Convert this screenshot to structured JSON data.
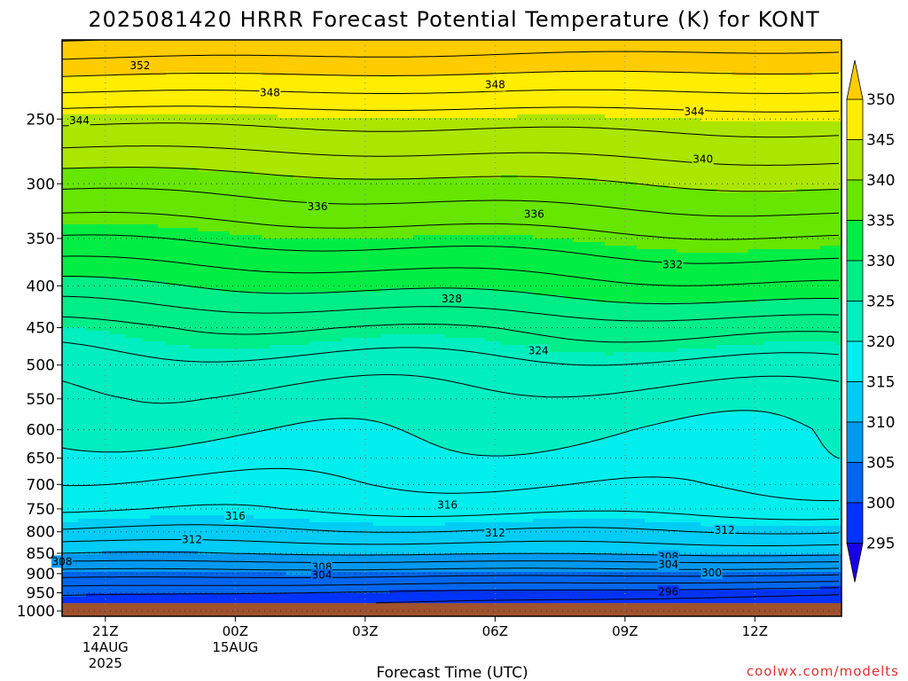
{
  "title": "2025081420 HRRR Forecast Potential Temperature (K) for KONT",
  "credit": "coolwx.com/modelts",
  "chart_data": {
    "type": "heatmap",
    "title": "2025081420 HRRR Forecast Potential Temperature (K) for KONT",
    "xlabel": "Forecast Time (UTC)",
    "ylabel": "",
    "x_ticks": [
      {
        "hour": 1,
        "lines": [
          "21Z",
          "14AUG",
          "2025"
        ]
      },
      {
        "hour": 4,
        "lines": [
          "00Z",
          "15AUG"
        ]
      },
      {
        "hour": 7,
        "lines": [
          "03Z"
        ]
      },
      {
        "hour": 10,
        "lines": [
          "06Z"
        ]
      },
      {
        "hour": 13,
        "lines": [
          "09Z"
        ]
      },
      {
        "hour": 16,
        "lines": [
          "12Z"
        ]
      }
    ],
    "x_range_hours": [
      0,
      18
    ],
    "y_ticks": [
      250,
      300,
      350,
      400,
      450,
      500,
      550,
      600,
      650,
      700,
      750,
      800,
      850,
      900,
      950,
      1000
    ],
    "y_range_hPa": [
      200,
      1015
    ],
    "y_scale": "log",
    "ground_pressure_hPa": 978,
    "colorbar": {
      "levels": [
        295,
        300,
        305,
        310,
        315,
        320,
        325,
        330,
        335,
        340,
        345,
        350
      ],
      "colors": [
        "#1a00e6",
        "#0033ff",
        "#0066ee",
        "#0099f0",
        "#00ccf5",
        "#00eeee",
        "#00eec0",
        "#00ee88",
        "#00ee44",
        "#66e600",
        "#aae600",
        "#ffee00",
        "#ffcc00"
      ]
    },
    "ground_color": "#a0522d",
    "contour_interval": 2,
    "potential_temperature_profile": {
      "pressure": [
        200,
        250,
        300,
        350,
        400,
        450,
        500,
        550,
        600,
        650,
        700,
        750,
        800,
        850,
        900,
        950,
        978
      ],
      "theta_hour0": [
        354,
        344.5,
        338.5,
        334,
        329.5,
        325.5,
        323,
        321.5,
        320.5,
        319,
        317.5,
        316,
        313.5,
        310,
        305,
        300.5,
        299
      ],
      "theta_hour18": [
        353,
        345,
        340.5,
        336,
        332,
        327,
        323.5,
        321,
        320,
        319.5,
        318.5,
        317,
        314,
        310.5,
        304.5,
        298.5,
        296.5
      ]
    },
    "contour_labels": [
      {
        "value": 352,
        "hour": 1.8,
        "p": 215
      },
      {
        "value": 348,
        "hour": 4.8,
        "p": 232
      },
      {
        "value": 348,
        "hour": 10,
        "p": 227
      },
      {
        "value": 344,
        "hour": 0.4,
        "p": 251
      },
      {
        "value": 344,
        "hour": 14.6,
        "p": 245
      },
      {
        "value": 340,
        "hour": 14.8,
        "p": 280
      },
      {
        "value": 336,
        "hour": 5.9,
        "p": 320
      },
      {
        "value": 336,
        "hour": 10.9,
        "p": 327
      },
      {
        "value": 332,
        "hour": 14.1,
        "p": 377
      },
      {
        "value": 328,
        "hour": 9,
        "p": 415
      },
      {
        "value": 324,
        "hour": 11,
        "p": 480
      },
      {
        "value": 316,
        "hour": 4,
        "p": 765
      },
      {
        "value": 316,
        "hour": 8.9,
        "p": 742
      },
      {
        "value": 312,
        "hour": 3,
        "p": 818
      },
      {
        "value": 312,
        "hour": 10,
        "p": 803
      },
      {
        "value": 312,
        "hour": 15.3,
        "p": 797
      },
      {
        "value": 308,
        "hour": 0,
        "p": 870
      },
      {
        "value": 308,
        "hour": 6,
        "p": 884
      },
      {
        "value": 308,
        "hour": 14,
        "p": 858
      },
      {
        "value": 304,
        "hour": 6,
        "p": 904
      },
      {
        "value": 304,
        "hour": 14,
        "p": 877
      },
      {
        "value": 300,
        "hour": 15,
        "p": 898
      },
      {
        "value": 296,
        "hour": 14,
        "p": 947
      }
    ]
  }
}
